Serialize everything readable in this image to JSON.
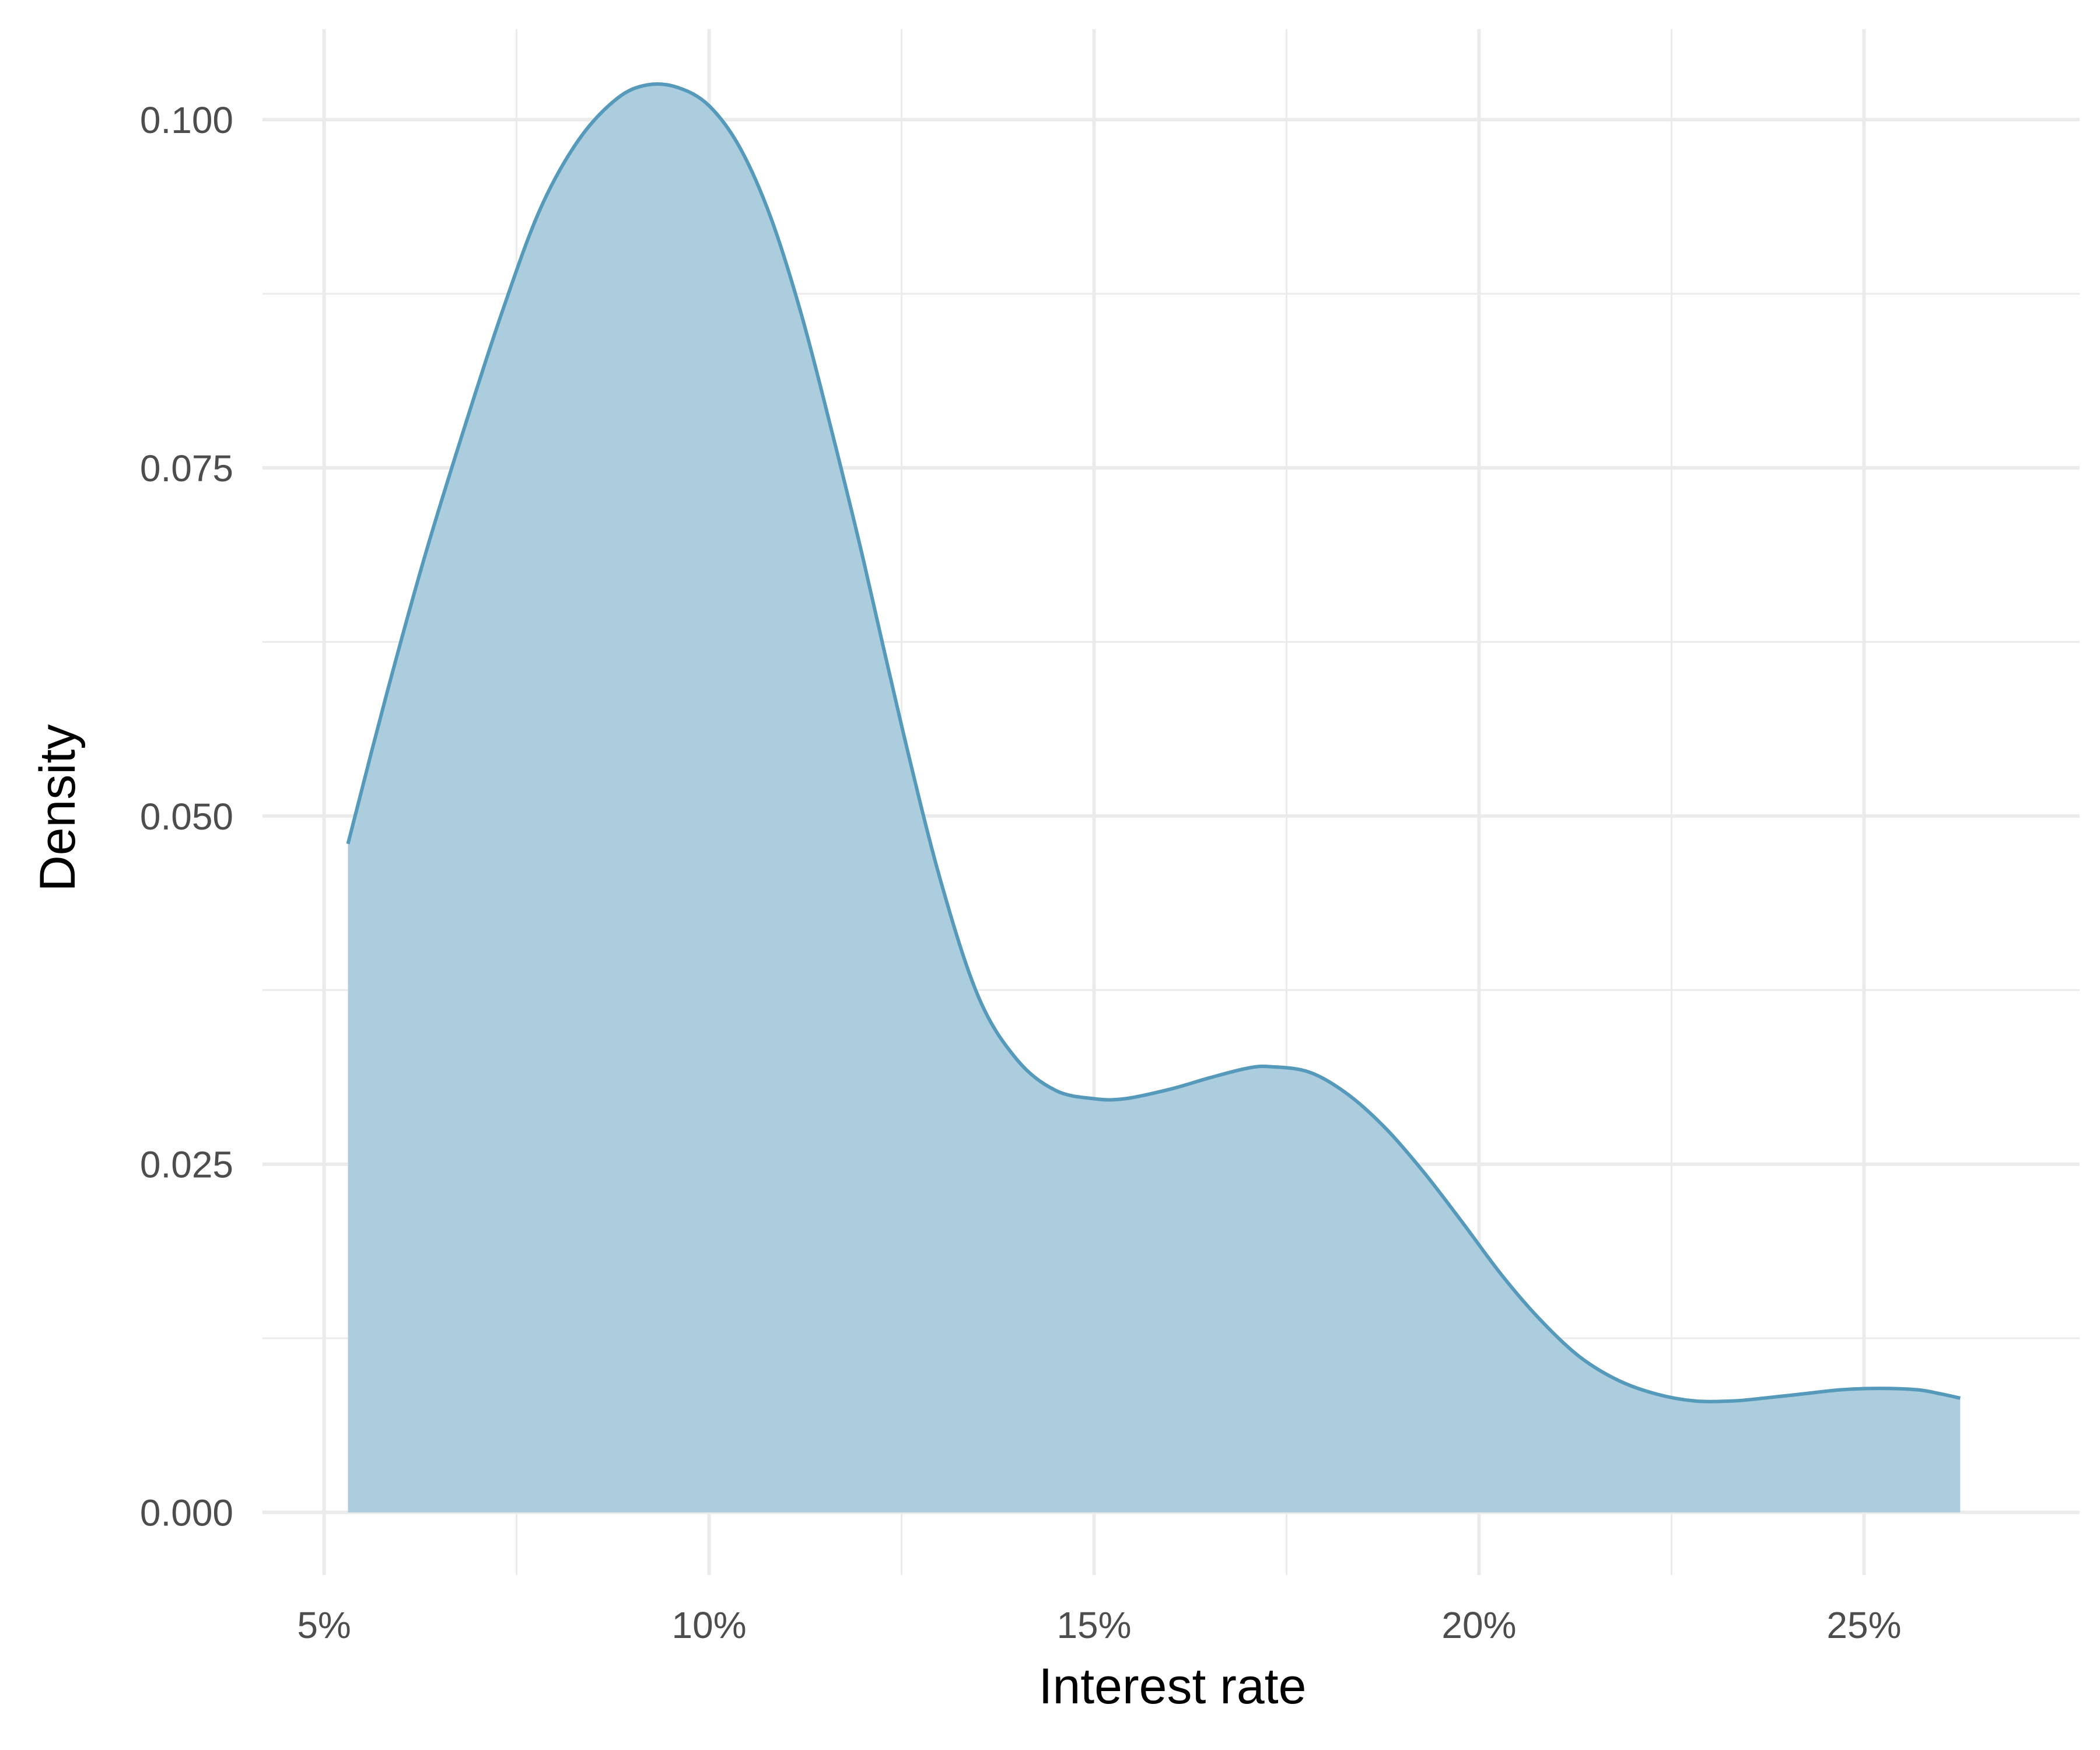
{
  "chart_data": {
    "type": "area",
    "title": "",
    "xlabel": "Interest rate",
    "ylabel": "Density",
    "xlim": [
      4.2,
      27.8
    ],
    "ylim": [
      -0.0045,
      0.1065
    ],
    "x_ticks": [
      5,
      10,
      15,
      20,
      25
    ],
    "x_tick_labels": [
      "5%",
      "10%",
      "15%",
      "20%",
      "25%"
    ],
    "x_minor_ticks": [
      7.5,
      12.5,
      17.5,
      22.5
    ],
    "y_ticks": [
      0.0,
      0.025,
      0.05,
      0.075,
      0.1
    ],
    "y_tick_labels": [
      "0.000",
      "0.025",
      "0.050",
      "0.075",
      "0.100"
    ],
    "y_minor_ticks": [
      0.0125,
      0.0375,
      0.0625,
      0.0875
    ],
    "grid": true,
    "legend": "none",
    "colors": {
      "fill": "#a9cbdc",
      "line": "#5599bb",
      "grid": "#ebebeb"
    },
    "series": [
      {
        "name": "density",
        "x": [
          5.31,
          5.8,
          6.3,
          6.8,
          7.3,
          7.8,
          8.3,
          8.8,
          9.2,
          9.6,
          10.0,
          10.4,
          10.8,
          11.2,
          11.6,
          12.0,
          12.5,
          13.0,
          13.5,
          14.0,
          14.5,
          15.0,
          15.4,
          16.0,
          16.5,
          17.0,
          17.3,
          17.8,
          18.3,
          18.8,
          19.3,
          19.8,
          20.3,
          20.8,
          21.3,
          21.8,
          22.3,
          22.8,
          23.3,
          23.7,
          24.2,
          24.7,
          25.2,
          25.7,
          26.0,
          26.25
        ],
        "y": [
          0.048,
          0.0585,
          0.0685,
          0.0775,
          0.086,
          0.0935,
          0.0985,
          0.1015,
          0.1025,
          0.1023,
          0.101,
          0.098,
          0.093,
          0.086,
          0.0775,
          0.0685,
          0.0565,
          0.0455,
          0.037,
          0.0325,
          0.0303,
          0.0297,
          0.0297,
          0.0304,
          0.0312,
          0.0319,
          0.032,
          0.0316,
          0.03,
          0.0275,
          0.0243,
          0.0207,
          0.017,
          0.0138,
          0.0112,
          0.0095,
          0.0085,
          0.008,
          0.008,
          0.0082,
          0.0085,
          0.0088,
          0.0089,
          0.0088,
          0.0085,
          0.0082
        ]
      }
    ]
  }
}
